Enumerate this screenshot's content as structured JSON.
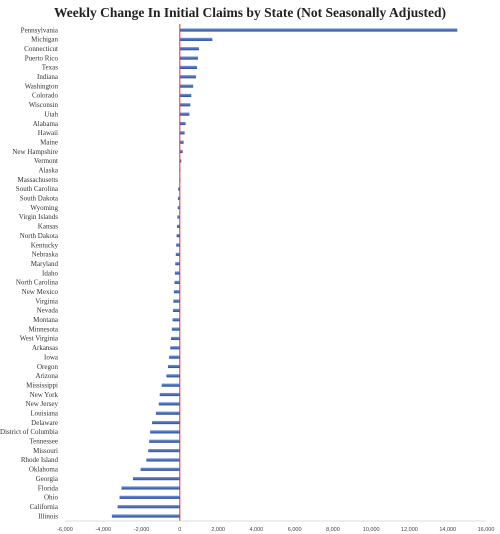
{
  "chart_data": {
    "type": "bar",
    "orientation": "horizontal",
    "title": "Weekly Change In Initial Claims by State (Not Seasonally Adjusted)",
    "categories": [
      "Pennsylvania",
      "Michigan",
      "Connecticut",
      "Puerto Rico",
      "Texas",
      "Indiana",
      "Washington",
      "Colorado",
      "Wisconsin",
      "Utah",
      "Alabama",
      "Hawaii",
      "Maine",
      "New Hampshire",
      "Vermont",
      "Alaska",
      "Massachusetts",
      "South Carolina",
      "South Dakota",
      "Wyoming",
      "Virgin Islands",
      "Kansas",
      "North Dakota",
      "Kentucky",
      "Nebraska",
      "Maryland",
      "Idaho",
      "North Carolina",
      "New Mexico",
      "Virginia",
      "Nevada",
      "Montana",
      "Minnesota",
      "West Virginia",
      "Arkansas",
      "Iowa",
      "Oregon",
      "Arizona",
      "Mississippi",
      "New York",
      "New Jersey",
      "Louisiana",
      "Delaware",
      "District of Columbia",
      "Tennessee",
      "Missouri",
      "Rhode Island",
      "Oklahoma",
      "Georgia",
      "Florida",
      "Ohio",
      "California",
      "Illinois"
    ],
    "values": [
      14500,
      1700,
      1000,
      950,
      900,
      850,
      700,
      600,
      550,
      500,
      300,
      250,
      200,
      150,
      80,
      20,
      10,
      -90,
      -100,
      -110,
      -130,
      -150,
      -170,
      -190,
      -210,
      -240,
      -260,
      -280,
      -310,
      -340,
      -360,
      -380,
      -420,
      -460,
      -500,
      -560,
      -620,
      -700,
      -950,
      -1050,
      -1100,
      -1250,
      -1450,
      -1550,
      -1600,
      -1650,
      -1750,
      -2050,
      -2450,
      -3050,
      -3150,
      -3250,
      -3550
    ],
    "xlim": [
      -6000,
      16000
    ],
    "xticks": [
      "-6,000",
      "-4,000",
      "-2,000",
      "0",
      "2,000",
      "4,000",
      "6,000",
      "8,000",
      "10,000",
      "12,000",
      "14,000",
      "16,000"
    ],
    "xtick_values": [
      -6000,
      -4000,
      -2000,
      0,
      2000,
      4000,
      6000,
      8000,
      10000,
      12000,
      14000,
      16000
    ],
    "bar_color": "#4a6fbd",
    "zero_line_color": "#e03030",
    "grid": false,
    "legend": "none"
  }
}
